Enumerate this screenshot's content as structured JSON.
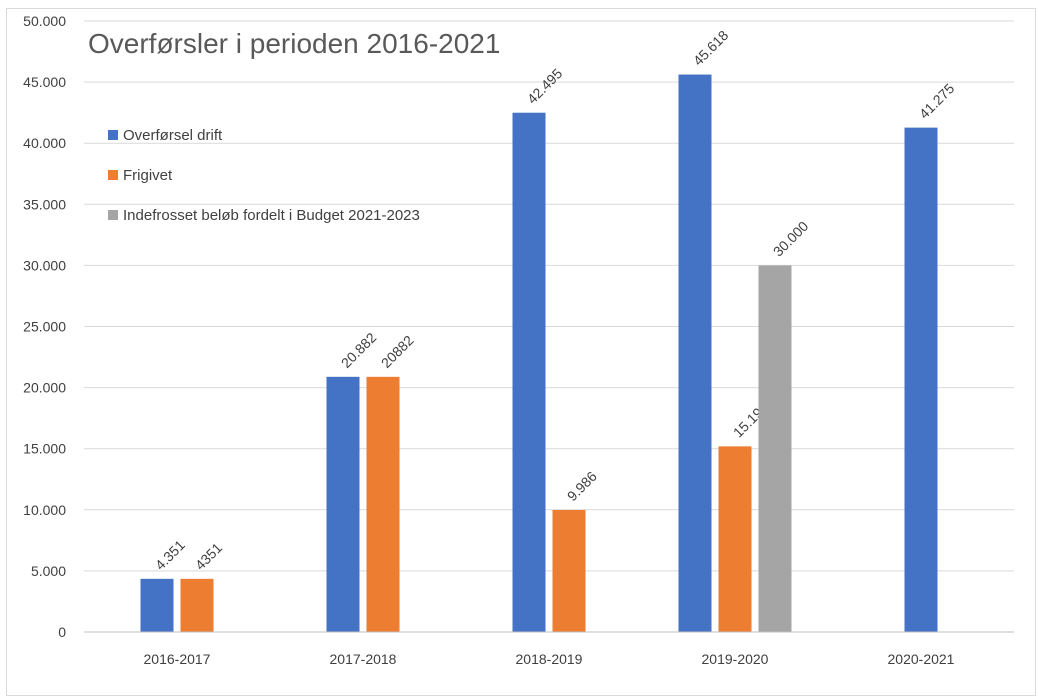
{
  "chart_data": {
    "type": "bar",
    "title": "Overførsler i perioden 2016-2021",
    "categories": [
      "2016-2017",
      "2017-2018",
      "2018-2019",
      "2019-2020",
      "2020-2021"
    ],
    "ylim": [
      0,
      50000
    ],
    "yticks": [
      "0",
      "5.000",
      "10.000",
      "15.000",
      "20.000",
      "25.000",
      "30.000",
      "35.000",
      "40.000",
      "45.000",
      "50.000"
    ],
    "ytick_values": [
      0,
      5000,
      10000,
      15000,
      20000,
      25000,
      30000,
      35000,
      40000,
      45000,
      50000
    ],
    "grid": true,
    "legend_position": "top-left",
    "series": [
      {
        "name": "Overførsel drift",
        "color": "#4472C4",
        "values": [
          4351,
          20882,
          42495,
          45618,
          41275
        ],
        "labels": [
          "4.351",
          "20.882",
          "42.495",
          "45.618",
          "41.275"
        ]
      },
      {
        "name": "Frigivet",
        "color": "#ED7D31",
        "values": [
          4351,
          20882,
          9986,
          15192,
          null
        ],
        "labels": [
          "4351",
          "20882",
          "9.986",
          "15.192",
          null
        ]
      },
      {
        "name": "Indefrosset beløb fordelt i Budget 2021-2023",
        "color": "#A5A5A5",
        "values": [
          null,
          null,
          null,
          30000,
          null
        ],
        "labels": [
          null,
          null,
          null,
          "30.000",
          null
        ]
      }
    ]
  }
}
